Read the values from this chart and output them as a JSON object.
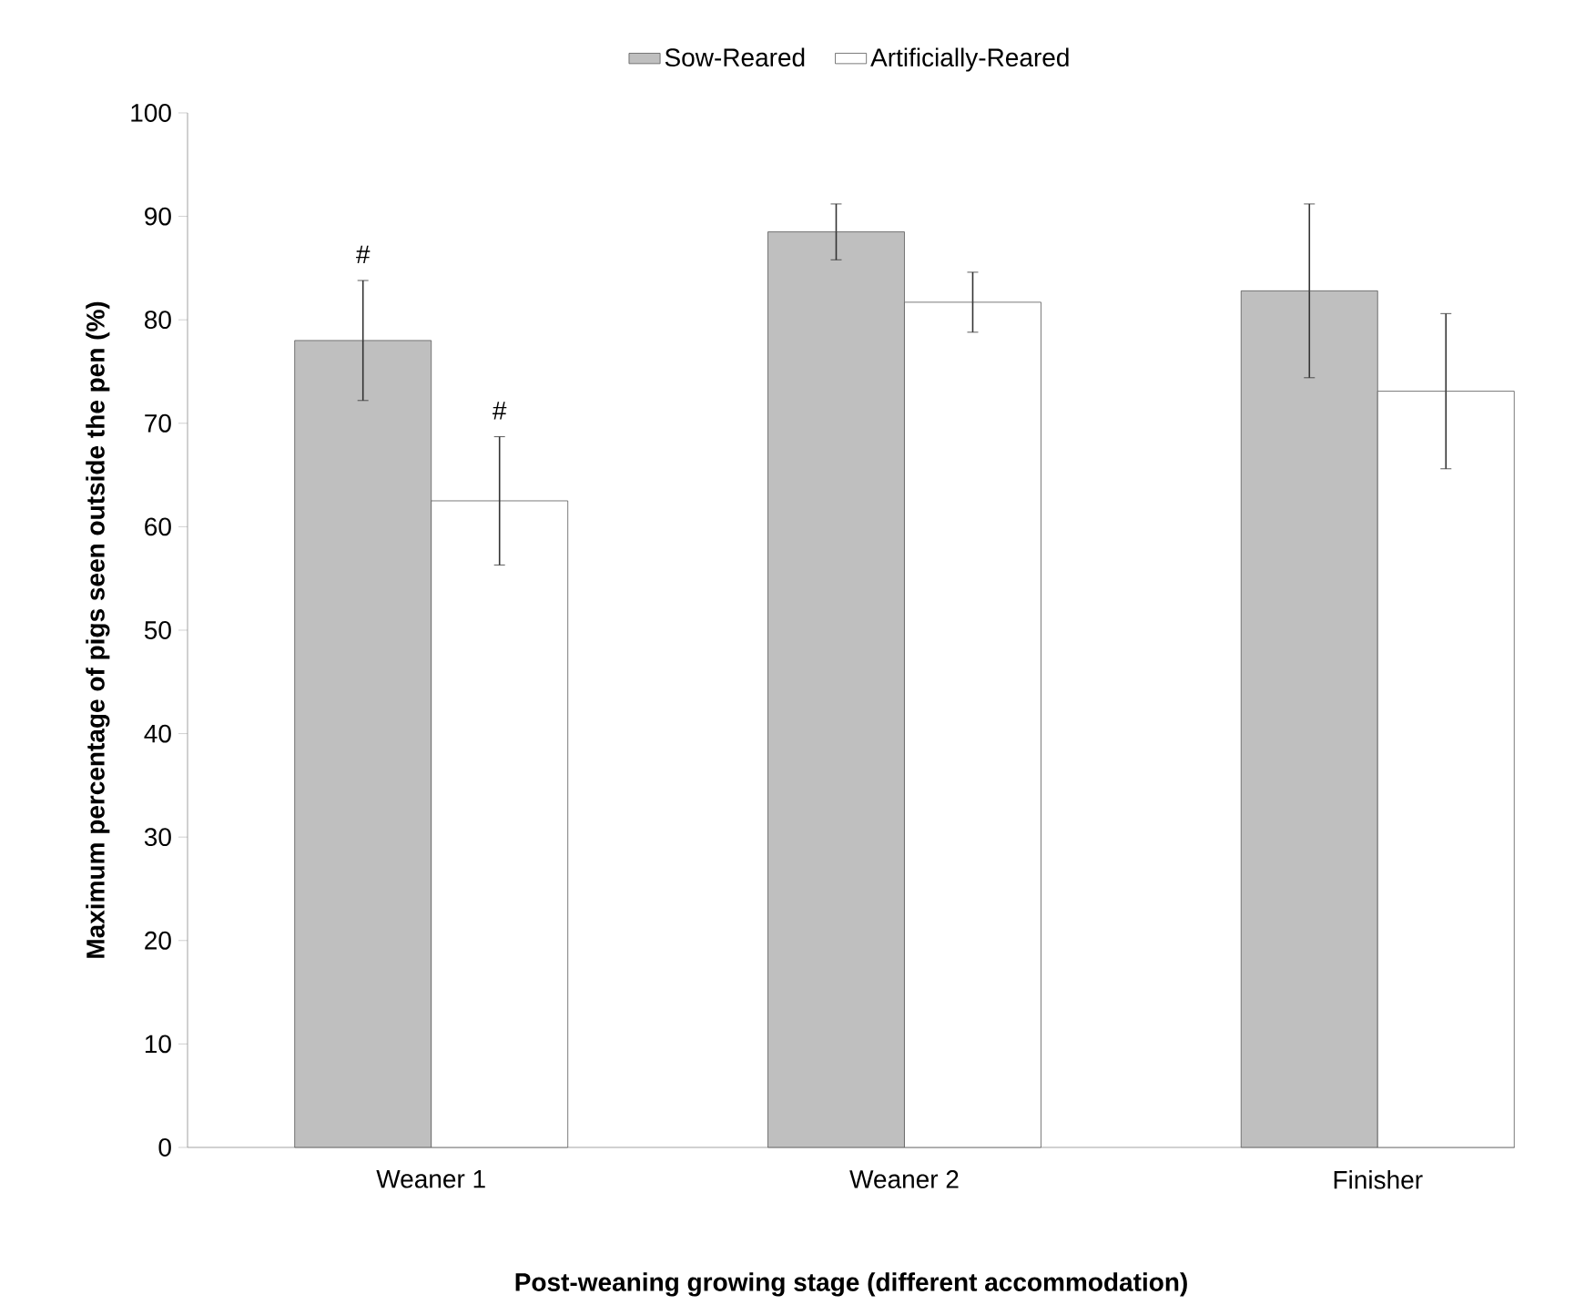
{
  "chart_data": {
    "type": "bar",
    "categories": [
      "Weaner 1",
      "Weaner 2",
      "Finisher"
    ],
    "xlabel": "Post-weaning growing stage (different accommodation)",
    "ylabel": "Maximum percentage of pigs seen outside the pen (%)",
    "ylim": [
      0,
      100
    ],
    "yticks": [
      0,
      10,
      20,
      30,
      40,
      50,
      60,
      70,
      80,
      90,
      100
    ],
    "legend": "top",
    "grid": false,
    "series": [
      {
        "name": "Sow-Reared",
        "color": "#bfbfbf",
        "values": [
          78.0,
          88.5,
          82.8
        ],
        "errors": [
          5.8,
          2.7,
          8.4
        ]
      },
      {
        "name": "Artificially-Reared",
        "color": "#ffffff",
        "values": [
          62.5,
          81.7,
          73.1
        ],
        "errors": [
          6.2,
          2.9,
          7.5
        ]
      }
    ],
    "annotations": [
      "#",
      {
        "text": "#",
        "x": "Weaner 1",
        "y": 68.7
      }
    ]
  }
}
